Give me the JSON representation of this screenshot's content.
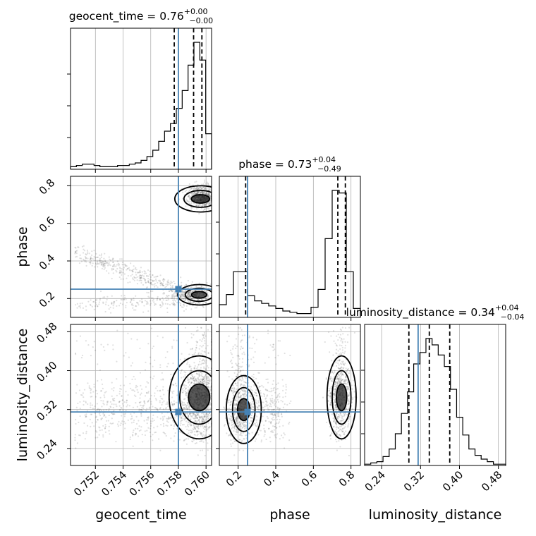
{
  "chart_data": {
    "type": "corner",
    "parameters": [
      "geocent_time",
      "phase",
      "luminosity_distance"
    ],
    "truth": {
      "geocent_time": 0.758,
      "phase": 0.25,
      "luminosity_distance": 0.315
    },
    "ranges": {
      "geocent_time": [
        0.7502,
        0.7604
      ],
      "phase": [
        0.1,
        0.85
      ],
      "luminosity_distance": [
        0.205,
        0.495
      ]
    },
    "titles": [
      {
        "param": "geocent_time",
        "main": "geocent_time = 0.76",
        "plus": "+0.00",
        "minus": "−0.00"
      },
      {
        "param": "phase",
        "main": "phase = 0.73",
        "plus": "+0.04",
        "minus": "−0.49"
      },
      {
        "param": "luminosity_distance",
        "main": "luminosity_distance = 0.34",
        "plus": "+0.04",
        "minus": "−0.04"
      }
    ],
    "quantiles": {
      "geocent_time": [
        0.7577,
        0.7591,
        0.7597
      ],
      "phase": [
        0.24,
        0.73,
        0.77
      ],
      "luminosity_distance": [
        0.296,
        0.338,
        0.38
      ]
    },
    "ticks": {
      "geocent_time": [
        0.752,
        0.754,
        0.756,
        0.758,
        0.76
      ],
      "phase": [
        0.2,
        0.4,
        0.6,
        0.8
      ],
      "luminosity_distance": [
        0.24,
        0.32,
        0.4,
        0.48
      ]
    },
    "tick_labels": {
      "geocent_time": [
        "0.752",
        "0.754",
        "0.756",
        "0.758",
        "0.760"
      ],
      "phase": [
        "0.2",
        "0.4",
        "0.6",
        "0.8"
      ],
      "luminosity_distance": [
        "0.24",
        "0.32",
        "0.40",
        "0.48"
      ]
    },
    "axis_labels": {
      "geocent_time": "geocent_time",
      "phase": "phase",
      "luminosity_distance": "luminosity_distance"
    },
    "histograms": {
      "geocent_time": [
        0.02,
        0.03,
        0.04,
        0.04,
        0.03,
        0.02,
        0.02,
        0.02,
        0.03,
        0.03,
        0.04,
        0.05,
        0.07,
        0.1,
        0.15,
        0.22,
        0.3,
        0.36,
        0.48,
        0.62,
        0.82,
        1.0,
        0.86,
        0.28
      ],
      "phase": [
        0.1,
        0.18,
        0.36,
        0.36,
        0.17,
        0.13,
        0.11,
        0.09,
        0.07,
        0.05,
        0.04,
        0.03,
        0.03,
        0.08,
        0.22,
        0.62,
        1.0,
        0.98,
        0.36,
        0.07
      ],
      "luminosity_distance": [
        0.01,
        0.02,
        0.03,
        0.07,
        0.13,
        0.25,
        0.41,
        0.58,
        0.8,
        0.89,
        1.0,
        0.95,
        0.87,
        0.78,
        0.6,
        0.38,
        0.24,
        0.13,
        0.08,
        0.05,
        0.03,
        0.01,
        0.01
      ]
    },
    "color": "#4682b4",
    "grid": true
  }
}
